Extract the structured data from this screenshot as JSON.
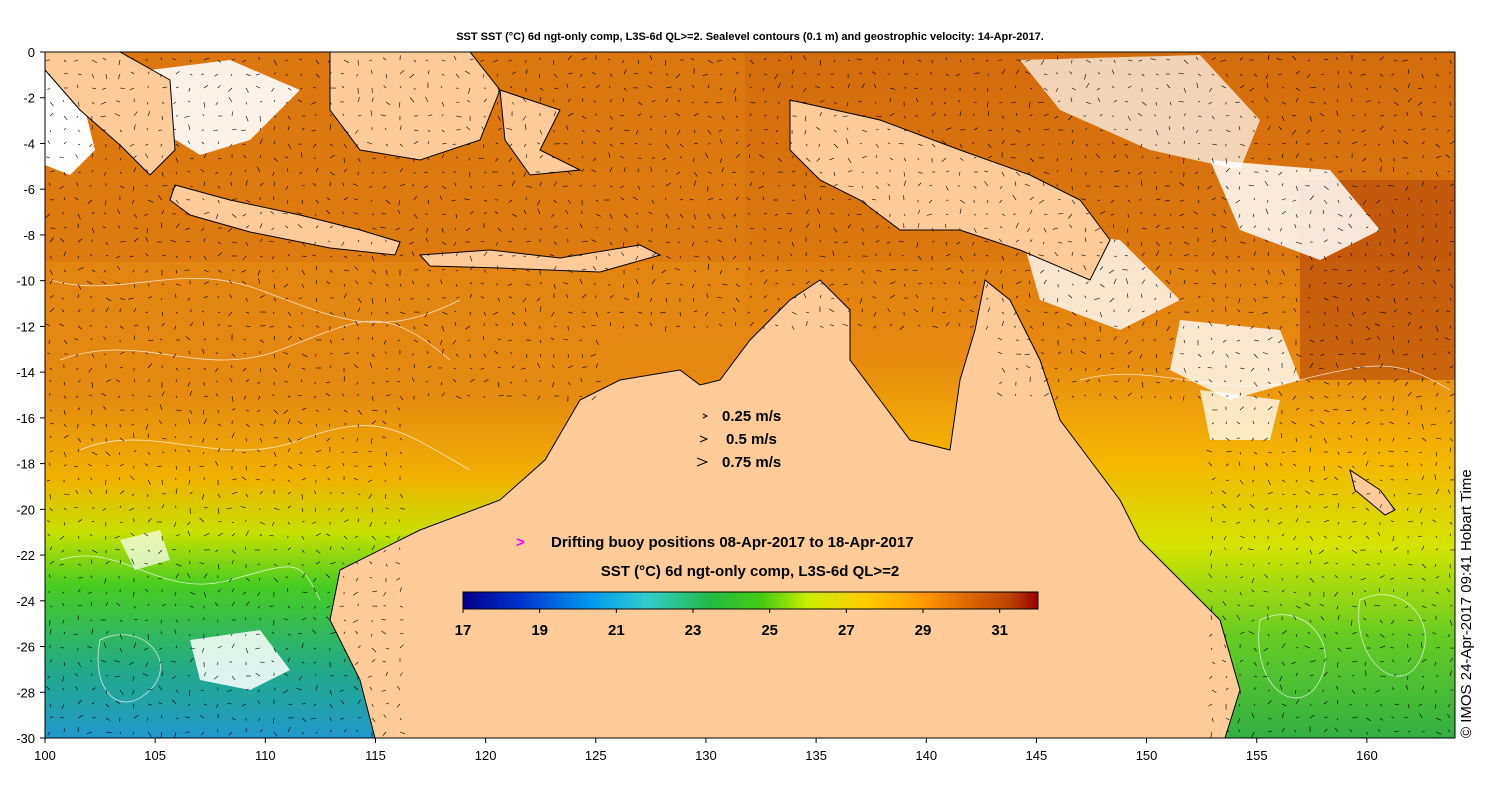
{
  "title": "SST SST (°C) 6d ngt-only comp, L3S-6d QL>=2. Sealevel contours (0.1 m) and geostrophic velocity: 14-Apr-2017.",
  "x_axis": {
    "ticks": [
      "100",
      "105",
      "110",
      "115",
      "120",
      "125",
      "130",
      "135",
      "140",
      "145",
      "150",
      "155",
      "160"
    ],
    "range": [
      100,
      164
    ]
  },
  "y_axis": {
    "ticks": [
      "0",
      "-2",
      "-4",
      "-6",
      "-8",
      "-10",
      "-12",
      "-14",
      "-16",
      "-18",
      "-20",
      "-22",
      "-24",
      "-26",
      "-28",
      "-30"
    ],
    "range": [
      -30,
      0
    ]
  },
  "velocity_key": {
    "entries": [
      {
        "label": "0.25 m/s",
        "speed": 0.25
      },
      {
        "label": "0.5 m/s",
        "speed": 0.5
      },
      {
        "label": "0.75 m/s",
        "speed": 0.75
      }
    ]
  },
  "buoy_legend": {
    "symbol": ">",
    "label": "Drifting buoy positions 08-Apr-2017 to 18-Apr-2017",
    "color": "#ff00ff"
  },
  "colorbar": {
    "title": "SST (°C) 6d ngt-only comp, L3S-6d QL>=2",
    "min": 17,
    "max": 32,
    "tick_labels": [
      "17",
      "19",
      "21",
      "23",
      "25",
      "27",
      "29",
      "31"
    ],
    "stops": [
      "#00008b",
      "#0033cc",
      "#0099ee",
      "#33cccc",
      "#22bb44",
      "#44cc11",
      "#ccee00",
      "#ffcc00",
      "#ff9900",
      "#dd6600",
      "#bb4400",
      "#990000"
    ]
  },
  "credit": "© IMOS 24-Apr-2017 09:41 Hobart Time",
  "colors": {
    "land": "#ffcc99",
    "no_data": "#ffffff",
    "contour": "#ffffff",
    "coastline": "#000000"
  }
}
